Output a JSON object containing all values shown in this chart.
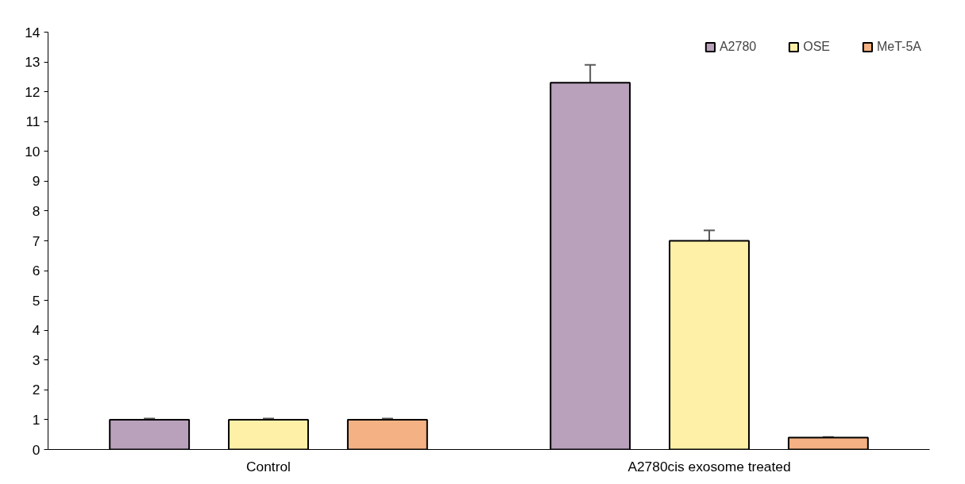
{
  "chart_data": {
    "type": "bar",
    "categories": [
      "Control",
      "A2780cis exosome treated"
    ],
    "series": [
      {
        "name": "A2780",
        "color": "#b9a0bb",
        "values": [
          1,
          12.3
        ],
        "errors": [
          0.04,
          0.6
        ]
      },
      {
        "name": "OSE",
        "color": "#fff0a8",
        "values": [
          1,
          7.0
        ],
        "errors": [
          0.04,
          0.35
        ]
      },
      {
        "name": "MeT-5A",
        "color": "#f4b183",
        "values": [
          1,
          0.4
        ],
        "errors": [
          0.04,
          0.02
        ]
      }
    ],
    "ylim": [
      0,
      14
    ],
    "yticks": [
      0,
      1,
      2,
      3,
      4,
      5,
      6,
      7,
      8,
      9,
      10,
      11,
      12,
      13,
      14
    ],
    "grid": false,
    "legend": "top right"
  }
}
